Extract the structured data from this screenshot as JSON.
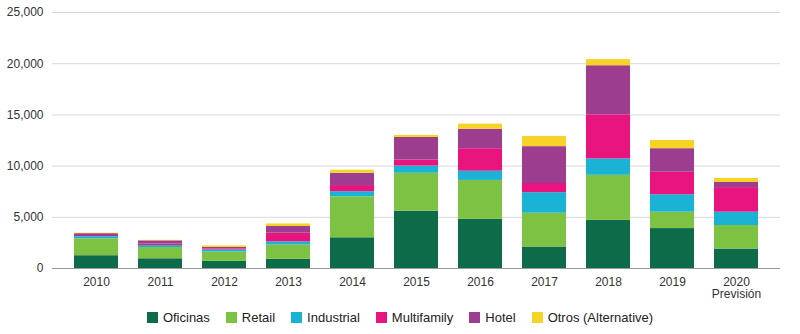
{
  "chart_data": {
    "type": "bar",
    "stacked": true,
    "grid": true,
    "legend": "bottom",
    "categories": [
      "2010",
      "2011",
      "2012",
      "2013",
      "2014",
      "2015",
      "2016",
      "2017",
      "2018",
      "2019",
      "2020\nPrevisión"
    ],
    "ylim": [
      0,
      25000
    ],
    "yticks": [
      0,
      {
        "value": 5000,
        "label": "5,000"
      },
      {
        "value": 10000,
        "label": "10,000"
      },
      {
        "value": 15000,
        "label": "15,000"
      },
      {
        "value": 20000,
        "label": "20,000"
      },
      {
        "value": 25000,
        "label": "25,000"
      }
    ],
    "series": [
      {
        "name": "Oficinas",
        "color": "#0d6b4a",
        "values": [
          1250,
          950,
          700,
          900,
          3000,
          5600,
          4800,
          2100,
          4700,
          3900,
          1900
        ]
      },
      {
        "name": "Retail",
        "color": "#7dc242",
        "values": [
          1650,
          1100,
          900,
          1400,
          4000,
          3700,
          3800,
          3300,
          4400,
          1600,
          2300
        ]
      },
      {
        "name": "Industrial",
        "color": "#1ab3d6",
        "values": [
          200,
          200,
          200,
          300,
          500,
          700,
          900,
          2000,
          1600,
          1700,
          1300
        ]
      },
      {
        "name": "Multifamily",
        "color": "#e8157f",
        "values": [
          0,
          150,
          100,
          850,
          600,
          600,
          2200,
          900,
          4300,
          2200,
          2400
        ]
      },
      {
        "name": "Hotel",
        "color": "#9c3d8f",
        "values": [
          300,
          300,
          150,
          650,
          1200,
          2200,
          1900,
          3600,
          4800,
          2300,
          500
        ]
      },
      {
        "name": "Otros (Alternative)",
        "color": "#f5d327",
        "values": [
          50,
          50,
          150,
          250,
          300,
          200,
          500,
          1000,
          600,
          800,
          400
        ]
      }
    ]
  }
}
